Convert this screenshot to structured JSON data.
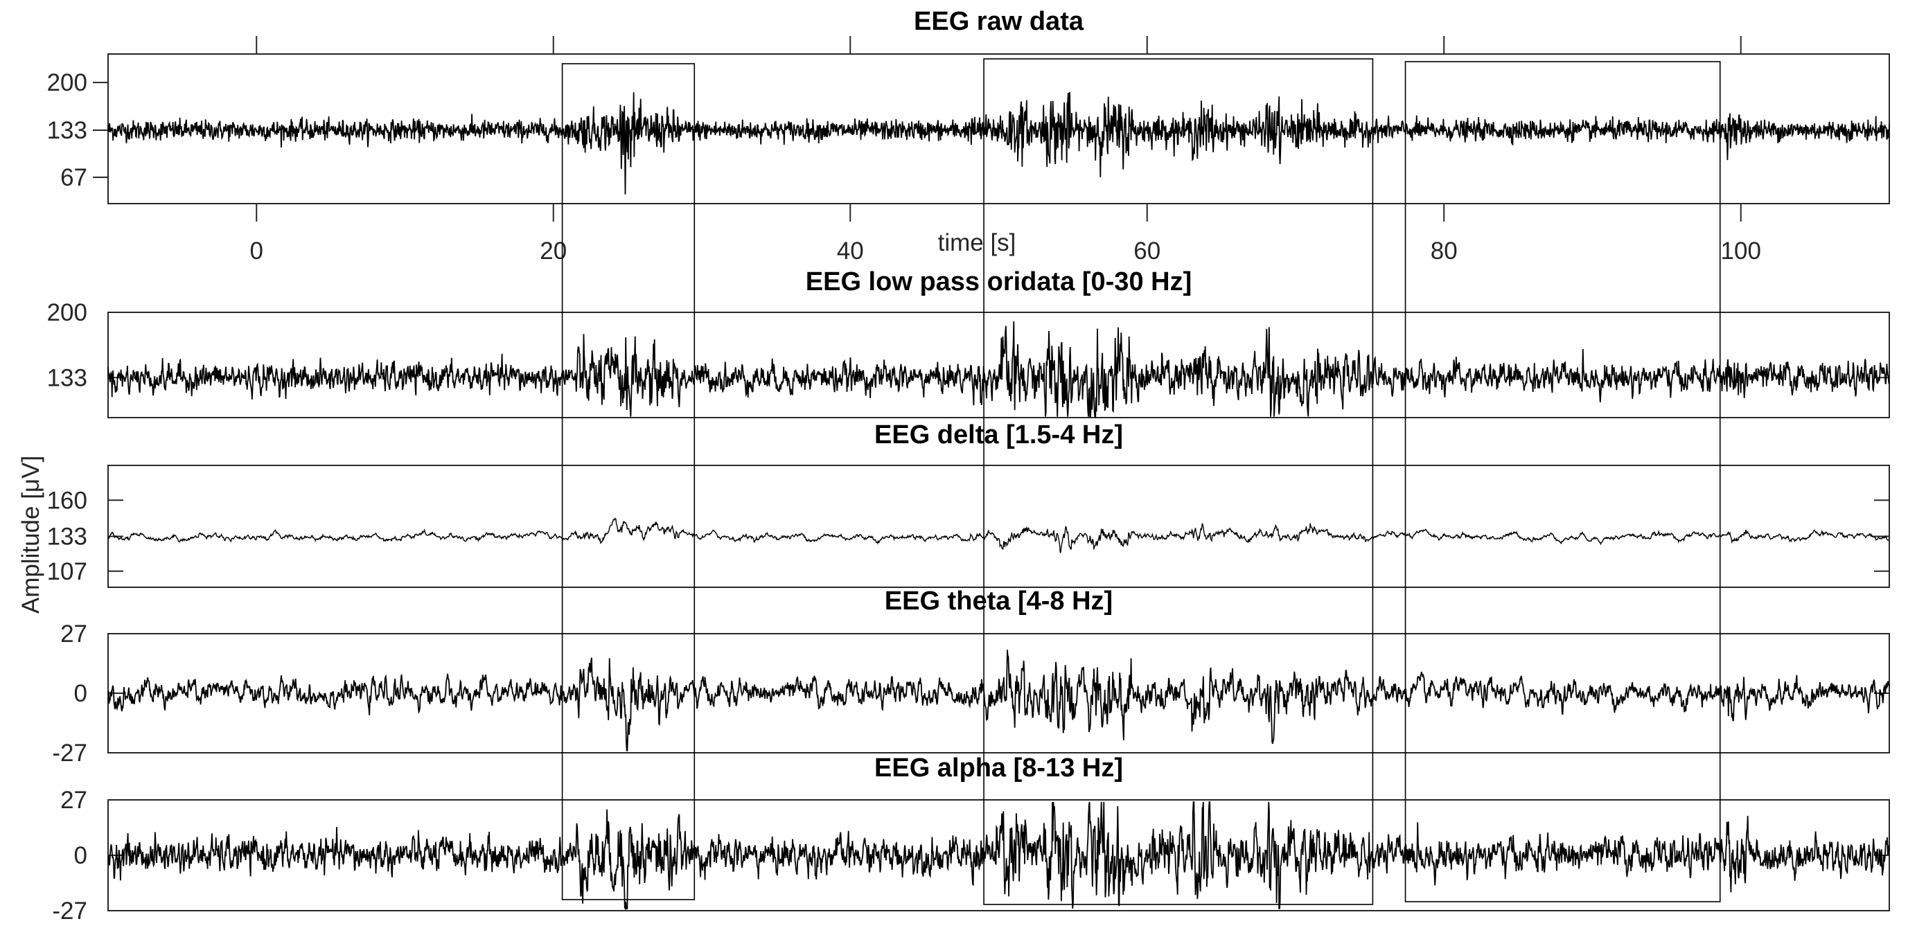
{
  "chart_data": {
    "type": "line",
    "xlabel": "time [s]",
    "ylabel": "Amplitude [μV]",
    "xlim": [
      -10,
      110
    ],
    "xticks": [
      0,
      20,
      40,
      60,
      80,
      100
    ],
    "grid": false,
    "panels": [
      {
        "title": "EEG raw data",
        "ylim": [
          30,
          240
        ],
        "yticks": [
          67,
          133,
          200
        ],
        "baseline": 133
      },
      {
        "title": "EEG low pass oridata [0-30 Hz]",
        "ylim": [
          92,
          200
        ],
        "yticks": [
          133,
          200
        ],
        "baseline": 133
      },
      {
        "title": "EEG delta [1.5-4 Hz]",
        "ylim": [
          95,
          186
        ],
        "yticks": [
          107,
          133,
          160
        ],
        "baseline": 133
      },
      {
        "title": "EEG theta [4-8 Hz]",
        "ylim": [
          -27,
          27
        ],
        "yticks": [
          -27,
          0,
          27
        ],
        "baseline": 0
      },
      {
        "title": "EEG alpha [8-13 Hz]",
        "ylim": [
          -27,
          27
        ],
        "yticks": [
          -27,
          0,
          27
        ],
        "baseline": 0
      }
    ],
    "highlight_windows_s": [
      [
        20.6,
        29.5
      ],
      [
        49.0,
        75.2
      ],
      [
        77.4,
        98.6
      ]
    ],
    "line_color": "#000000"
  }
}
